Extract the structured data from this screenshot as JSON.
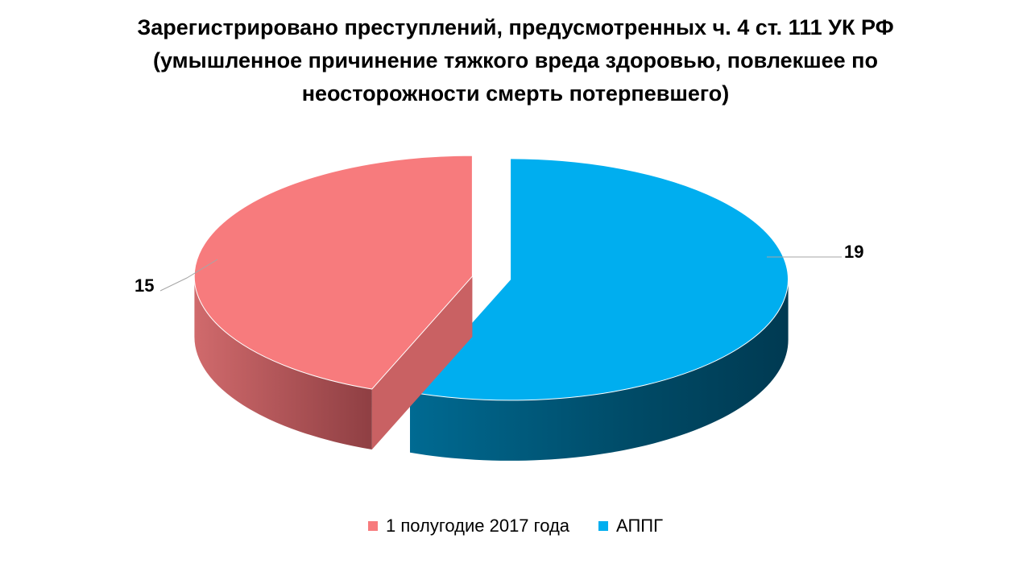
{
  "chart_data": {
    "type": "pie",
    "title_lines": [
      "Зарегистрировано преступлений, предусмотренных ч. 4 ст. 111 УК РФ",
      "(умышленное причинение тяжкого вреда здоровью, повлекшее по",
      "неосторожности смерть потерпевшего)"
    ],
    "series": [
      {
        "name": "1 полугодие 2017 года",
        "value": 15,
        "label": "15",
        "color": "#F77B7D"
      },
      {
        "name": "АППГ",
        "value": 19,
        "label": "19",
        "color": "#00AEEF"
      }
    ],
    "legend_position": "bottom",
    "style": "3d-exploded"
  }
}
